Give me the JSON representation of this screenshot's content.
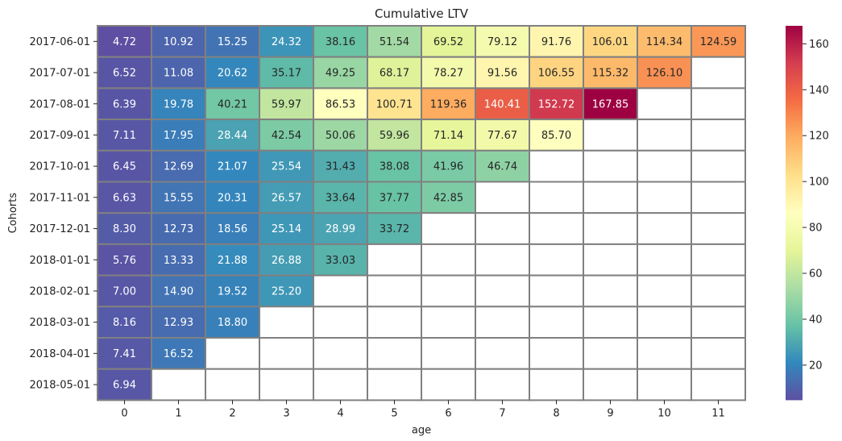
{
  "chart_data": {
    "type": "heatmap",
    "title": "Cumulative LTV",
    "xlabel": "age",
    "ylabel": "Cohorts",
    "x": [
      "0",
      "1",
      "2",
      "3",
      "4",
      "5",
      "6",
      "7",
      "8",
      "9",
      "10",
      "11"
    ],
    "y": [
      "2017-06-01",
      "2017-07-01",
      "2017-08-01",
      "2017-09-01",
      "2017-10-01",
      "2017-11-01",
      "2017-12-01",
      "2018-01-01",
      "2018-02-01",
      "2018-03-01",
      "2018-04-01",
      "2018-05-01"
    ],
    "values": [
      [
        4.72,
        10.92,
        15.25,
        24.32,
        38.16,
        51.54,
        69.52,
        79.12,
        91.76,
        106.01,
        114.34,
        124.59
      ],
      [
        6.52,
        11.08,
        20.62,
        35.17,
        49.25,
        68.17,
        78.27,
        91.56,
        106.55,
        115.32,
        126.1,
        null
      ],
      [
        6.39,
        19.78,
        40.21,
        59.97,
        86.53,
        100.71,
        119.36,
        140.41,
        152.72,
        167.85,
        null,
        null
      ],
      [
        7.11,
        17.95,
        28.44,
        42.54,
        50.06,
        59.96,
        71.14,
        77.67,
        85.7,
        null,
        null,
        null
      ],
      [
        6.45,
        12.69,
        21.07,
        25.54,
        31.43,
        38.08,
        41.96,
        46.74,
        null,
        null,
        null,
        null
      ],
      [
        6.63,
        15.55,
        20.31,
        26.57,
        33.64,
        37.77,
        42.85,
        null,
        null,
        null,
        null,
        null
      ],
      [
        8.3,
        12.73,
        18.56,
        25.14,
        28.99,
        33.72,
        null,
        null,
        null,
        null,
        null,
        null
      ],
      [
        5.76,
        13.33,
        21.88,
        26.88,
        33.03,
        null,
        null,
        null,
        null,
        null,
        null,
        null
      ],
      [
        7.0,
        14.9,
        19.52,
        25.2,
        null,
        null,
        null,
        null,
        null,
        null,
        null,
        null
      ],
      [
        8.16,
        12.93,
        18.8,
        null,
        null,
        null,
        null,
        null,
        null,
        null,
        null,
        null
      ],
      [
        7.41,
        16.52,
        null,
        null,
        null,
        null,
        null,
        null,
        null,
        null,
        null,
        null
      ],
      [
        6.94,
        null,
        null,
        null,
        null,
        null,
        null,
        null,
        null,
        null,
        null,
        null
      ]
    ],
    "labels": [
      [
        "4.72",
        "10.92",
        "15.25",
        "24.32",
        "38.16",
        "51.54",
        "69.52",
        "79.12",
        "91.76",
        "106.01",
        "114.34",
        "124.59"
      ],
      [
        "6.52",
        "11.08",
        "20.62",
        "35.17",
        "49.25",
        "68.17",
        "78.27",
        "91.56",
        "106.55",
        "115.32",
        "126.10",
        ""
      ],
      [
        "6.39",
        "19.78",
        "40.21",
        "59.97",
        "86.53",
        "100.71",
        "119.36",
        "140.41",
        "152.72",
        "167.85",
        "",
        ""
      ],
      [
        "7.11",
        "17.95",
        "28.44",
        "42.54",
        "50.06",
        "59.96",
        "71.14",
        "77.67",
        "85.70",
        "",
        "",
        ""
      ],
      [
        "6.45",
        "12.69",
        "21.07",
        "25.54",
        "31.43",
        "38.08",
        "41.96",
        "46.74",
        "",
        "",
        "",
        ""
      ],
      [
        "6.63",
        "15.55",
        "20.31",
        "26.57",
        "33.64",
        "37.77",
        "42.85",
        "",
        "",
        "",
        "",
        ""
      ],
      [
        "8.30",
        "12.73",
        "18.56",
        "25.14",
        "28.99",
        "33.72",
        "",
        "",
        "",
        "",
        "",
        ""
      ],
      [
        "5.76",
        "13.33",
        "21.88",
        "26.88",
        "33.03",
        "",
        "",
        "",
        "",
        "",
        "",
        ""
      ],
      [
        "7.00",
        "14.90",
        "19.52",
        "25.20",
        "",
        "",
        "",
        "",
        "",
        "",
        "",
        ""
      ],
      [
        "8.16",
        "12.93",
        "18.80",
        "",
        "",
        "",
        "",
        "",
        "",
        "",
        "",
        ""
      ],
      [
        "7.41",
        "16.52",
        "",
        "",
        "",
        "",
        "",
        "",
        "",
        "",
        "",
        ""
      ],
      [
        "6.94",
        "",
        "",
        "",
        "",
        "",
        "",
        "",
        "",
        "",
        "",
        ""
      ]
    ],
    "colormap": "Spectral_r",
    "vmin": 4.72,
    "vmax": 167.85,
    "colorbar_ticks": [
      20,
      40,
      60,
      80,
      100,
      120,
      140,
      160
    ],
    "cell_border_color": "#808080",
    "grid": false
  }
}
